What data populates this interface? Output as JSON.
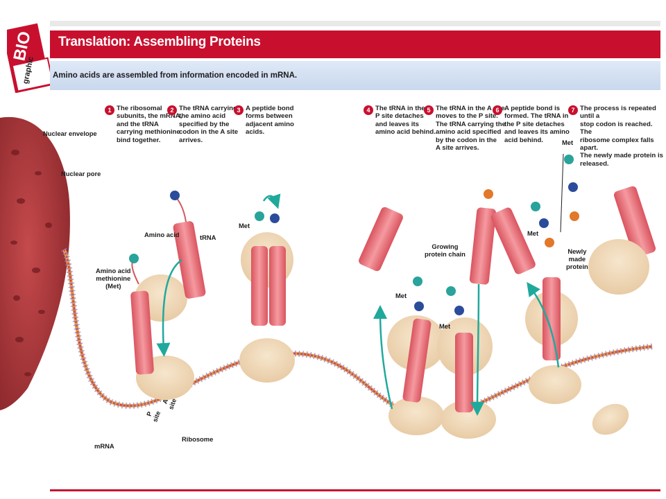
{
  "header": {
    "title": "Translation: Assembling Proteins",
    "subtitle": "Amino acids are assembled from information encoded in mRNA."
  },
  "logo": {
    "line1": "BIO",
    "line2": "graphic"
  },
  "steps": [
    {
      "number": "1",
      "text": "The ribosomal\nsubunits, the mRNA,\nand the tRNA\ncarrying methionine\nbind together."
    },
    {
      "number": "2",
      "text": "The tRNA carrying\nthe amino acid\nspecified by the\ncodon in the A site\narrives."
    },
    {
      "number": "3",
      "text": "A peptide bond\nforms between\nadjacent amino\nacids."
    },
    {
      "number": "4",
      "text": "The tRNA in the\nP site detaches\nand leaves its\namino acid behind."
    },
    {
      "number": "5",
      "text": "The tRNA in the A site\nmoves to the P site.\nThe tRNA carrying the\namino acid specified\nby the codon in the\nA site arrives."
    },
    {
      "number": "6",
      "text": "A peptide bond is\nformed. The tRNA in\nthe P site detaches\nand leaves its amino\nacid behind."
    },
    {
      "number": "7",
      "text": "The process is repeated until a\nstop codon is reached. The\nribosome complex falls apart.\nThe newly made protein is\nreleased."
    }
  ],
  "labels": {
    "nuclear_envelope": "Nuclear envelope",
    "nuclear_pore": "Nuclear pore",
    "amino_acid_met": "Amino acid\nmethionine\n(Met)",
    "amino_acid": "Amino acid",
    "trna": "tRNA",
    "met_step3": "Met",
    "growing_chain": "Growing\nprotein chain",
    "met_step4": "Met",
    "met_step5": "Met",
    "met_step6": "Met",
    "met_step7": "Met",
    "newly_made_protein": "Newly\nmade\nprotein",
    "p_site": "P\nsite",
    "a_site": "A\nsite",
    "ribosome": "Ribosome",
    "mrna": "mRNA"
  },
  "colors": {
    "accent_red": "#c8102e",
    "nucleus": "#a8373b",
    "ribosome": "#f0dcc0",
    "trna": "#e9707a",
    "teal_arrow": "#1fa99c",
    "met_ball": "#2aa39b",
    "aa_blue": "#2b4c9b",
    "aa_orange": "#e2782a",
    "mrna": "#d9442c"
  }
}
